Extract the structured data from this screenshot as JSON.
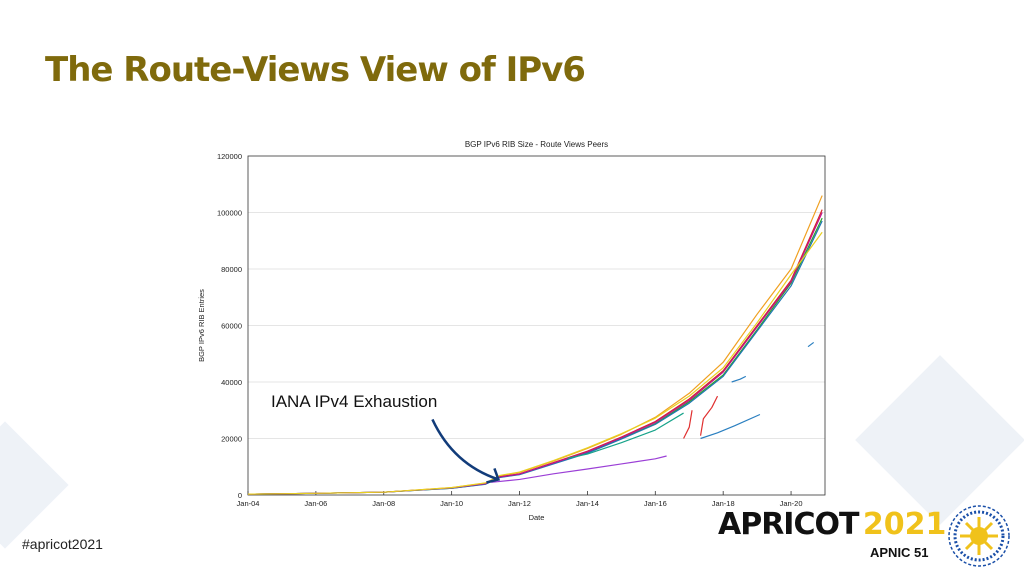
{
  "slide": {
    "title": "The Route-Views View of IPv6",
    "hashtag": "#apricot2021",
    "annotation": "IANA IPv4 Exhaustion",
    "logo": {
      "name": "APRICOT",
      "year": "2021",
      "sub": "APNIC 51"
    },
    "colors": {
      "title": "#7f6a0c",
      "arrow": "#123c7a",
      "logo_year": "#f0c21b",
      "logo_emblem": "#1a4fa8"
    }
  },
  "chart_data": {
    "type": "line",
    "title": "BGP IPv6 RIB Size - Route Views Peers",
    "xlabel": "Date",
    "ylabel": "BGP IPv6 RIB Entries",
    "xlim": [
      "2004-01",
      "2020-12"
    ],
    "ylim": [
      0,
      120000
    ],
    "x_ticks": [
      "Jan-04",
      "Jan-06",
      "Jan-08",
      "Jan-10",
      "Jan-12",
      "Jan-14",
      "Jan-16",
      "Jan-18",
      "Jan-20"
    ],
    "y_ticks": [
      0,
      20000,
      40000,
      60000,
      80000,
      100000,
      120000
    ],
    "grid": "horizontal",
    "legend": "none",
    "annotation": {
      "text": "IANA IPv4 Exhaustion",
      "points_to": "2011-02"
    },
    "series": [
      {
        "color": "#f0a020",
        "points": [
          [
            "2004-01",
            300
          ],
          [
            "2006-01",
            600
          ],
          [
            "2008-01",
            1000
          ],
          [
            "2010-01",
            2600
          ],
          [
            "2011-01",
            4200
          ],
          [
            "2011-06",
            6800
          ],
          [
            "2012-01",
            8000
          ],
          [
            "2013-01",
            12000
          ],
          [
            "2014-01",
            16500
          ],
          [
            "2015-01",
            21500
          ],
          [
            "2016-01",
            27500
          ],
          [
            "2017-01",
            36000
          ],
          [
            "2018-01",
            47000
          ],
          [
            "2019-01",
            64000
          ],
          [
            "2020-01",
            80000
          ],
          [
            "2020-12",
            106000
          ]
        ]
      },
      {
        "color": "#d62728",
        "points": [
          [
            "2004-01",
            300
          ],
          [
            "2006-01",
            600
          ],
          [
            "2008-01",
            1000
          ],
          [
            "2010-01",
            2500
          ],
          [
            "2011-01",
            4000
          ],
          [
            "2011-06",
            6500
          ],
          [
            "2012-01",
            7500
          ],
          [
            "2013-01",
            11500
          ],
          [
            "2014-01",
            15500
          ],
          [
            "2015-01",
            20500
          ],
          [
            "2016-01",
            26000
          ],
          [
            "2017-01",
            34000
          ],
          [
            "2018-01",
            44000
          ],
          [
            "2019-01",
            60000
          ],
          [
            "2020-01",
            76000
          ],
          [
            "2020-12",
            101000
          ]
        ]
      },
      {
        "color": "#2ca02c",
        "points": [
          [
            "2004-01",
            300
          ],
          [
            "2006-01",
            600
          ],
          [
            "2008-01",
            1000
          ],
          [
            "2010-01",
            2400
          ],
          [
            "2011-01",
            3900
          ],
          [
            "2011-06",
            6300
          ],
          [
            "2012-01",
            7300
          ],
          [
            "2013-01",
            11200
          ],
          [
            "2014-01",
            15000
          ],
          [
            "2015-01",
            20000
          ],
          [
            "2016-01",
            25200
          ],
          [
            "2017-01",
            33000
          ],
          [
            "2018-01",
            42500
          ],
          [
            "2019-01",
            58500
          ],
          [
            "2020-01",
            75000
          ],
          [
            "2020-12",
            98000
          ]
        ]
      },
      {
        "color": "#1f77b4",
        "points": [
          [
            "2004-01",
            300
          ],
          [
            "2006-01",
            600
          ],
          [
            "2008-01",
            1000
          ],
          [
            "2010-01",
            2400
          ],
          [
            "2011-01",
            3800
          ],
          [
            "2011-06",
            6200
          ],
          [
            "2012-01",
            7200
          ],
          [
            "2013-01",
            11000
          ],
          [
            "2014-01",
            14800
          ],
          [
            "2015-01",
            19800
          ],
          [
            "2016-01",
            25000
          ],
          [
            "2017-01",
            32500
          ],
          [
            "2018-01",
            42000
          ],
          [
            "2019-01",
            58000
          ],
          [
            "2020-01",
            74000
          ],
          [
            "2020-12",
            97000
          ]
        ]
      },
      {
        "color": "#c0148c",
        "points": [
          [
            "2004-01",
            300
          ],
          [
            "2006-01",
            600
          ],
          [
            "2008-01",
            1000
          ],
          [
            "2010-01",
            2500
          ],
          [
            "2011-01",
            4000
          ],
          [
            "2011-06",
            6400
          ],
          [
            "2012-01",
            7400
          ],
          [
            "2013-01",
            11300
          ],
          [
            "2014-01",
            15300
          ],
          [
            "2015-01",
            20300
          ],
          [
            "2016-01",
            25700
          ],
          [
            "2017-01",
            33500
          ],
          [
            "2018-01",
            43500
          ],
          [
            "2019-01",
            59500
          ],
          [
            "2020-01",
            75500
          ],
          [
            "2020-12",
            100000
          ]
        ]
      },
      {
        "color": "#e8d020",
        "points": [
          [
            "2004-01",
            300
          ],
          [
            "2006-01",
            600
          ],
          [
            "2008-01",
            1000
          ],
          [
            "2010-01",
            2600
          ],
          [
            "2011-01",
            4300
          ],
          [
            "2011-06",
            6900
          ],
          [
            "2012-01",
            8100
          ],
          [
            "2013-01",
            12200
          ],
          [
            "2014-01",
            16700
          ],
          [
            "2015-01",
            21700
          ],
          [
            "2016-01",
            27200
          ],
          [
            "2017-01",
            35000
          ],
          [
            "2018-01",
            45000
          ],
          [
            "2019-01",
            61000
          ],
          [
            "2020-01",
            78000
          ],
          [
            "2020-12",
            93000
          ]
        ]
      },
      {
        "color": "#9b3fd6",
        "points": [
          [
            "2011-03",
            4500
          ],
          [
            "2012-01",
            5500
          ],
          [
            "2013-01",
            7500
          ],
          [
            "2014-01",
            9200
          ],
          [
            "2015-01",
            11000
          ],
          [
            "2016-01",
            12800
          ],
          [
            "2016-05",
            13800
          ]
        ]
      },
      {
        "color": "#17a38a",
        "points": [
          [
            "2013-06",
            13000
          ],
          [
            "2014-01",
            14500
          ],
          [
            "2015-01",
            18500
          ],
          [
            "2016-01",
            23000
          ],
          [
            "2016-11",
            29000
          ]
        ]
      },
      {
        "color": "#2a7fc0",
        "points": [
          [
            "2017-05",
            20000
          ],
          [
            "2017-11",
            22000
          ],
          [
            "2018-05",
            24500
          ],
          [
            "2019-02",
            28500
          ]
        ]
      },
      {
        "color": "#2a7fc0",
        "points": [
          [
            "2018-04",
            40000
          ],
          [
            "2018-07",
            41000
          ],
          [
            "2018-09",
            42000
          ]
        ]
      },
      {
        "color": "#2a7fc0",
        "points": [
          [
            "2020-07",
            52500
          ],
          [
            "2020-09",
            54000
          ]
        ]
      },
      {
        "color": "#e03030",
        "points": [
          [
            "2016-11",
            20000
          ],
          [
            "2017-01",
            24000
          ],
          [
            "2017-02",
            30000
          ]
        ]
      },
      {
        "color": "#e03030",
        "points": [
          [
            "2017-05",
            21000
          ],
          [
            "2017-06",
            27000
          ],
          [
            "2017-09",
            31000
          ],
          [
            "2017-11",
            35000
          ]
        ]
      }
    ]
  }
}
